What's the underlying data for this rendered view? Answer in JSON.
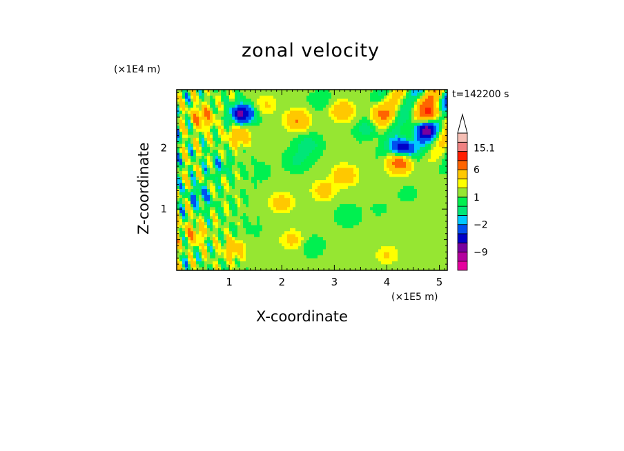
{
  "chart_data": {
    "type": "heatmap",
    "title": "zonal velocity",
    "xlabel": "X-coordinate",
    "ylabel": "Z-coordinate",
    "x_unit": "(×1E5 m)",
    "y_unit": "(×1E4 m)",
    "time_label": "t=142200 s",
    "xlim": [
      0,
      5.15
    ],
    "ylim": [
      0,
      2.95
    ],
    "x_ticks": [
      1,
      2,
      3,
      4,
      5
    ],
    "y_ticks": [
      1,
      2
    ],
    "colorbar": {
      "levels": [
        -15,
        -12,
        -9,
        -6,
        -4,
        -2,
        -1,
        0,
        1,
        2,
        3,
        6,
        9,
        12,
        15.1
      ],
      "colors": [
        "#e6009e",
        "#b4009e",
        "#78009e",
        "#0000c8",
        "#0050f0",
        "#00c8ff",
        "#00e678",
        "#00f050",
        "#96e632",
        "#ffff00",
        "#ffc800",
        "#ff6400",
        "#ff1e00",
        "#f08282",
        "#f5beb4"
      ],
      "tick_labels": [
        {
          "label": "15.1",
          "value": 15.1
        },
        {
          "label": "6",
          "value": 6
        },
        {
          "label": "1",
          "value": 1
        },
        {
          "label": "−2",
          "value": -2
        },
        {
          "label": "−9",
          "value": -9
        }
      ],
      "extend_max": true
    },
    "features": [
      {
        "x": 0.45,
        "z": 1.2,
        "value": -3
      },
      {
        "x": 0.3,
        "z": 0.6,
        "value": 4
      },
      {
        "x": 0.5,
        "z": 2.5,
        "value": 5
      },
      {
        "x": 1.25,
        "z": 2.55,
        "value": -8
      },
      {
        "x": 1.2,
        "z": 2.2,
        "value": 4
      },
      {
        "x": 1.7,
        "z": 2.7,
        "value": 2
      },
      {
        "x": 2.3,
        "z": 2.45,
        "value": 5
      },
      {
        "x": 2.5,
        "z": 2.05,
        "value": -2
      },
      {
        "x": 2.75,
        "z": 2.75,
        "value": -1
      },
      {
        "x": 3.15,
        "z": 2.6,
        "value": 4
      },
      {
        "x": 3.65,
        "z": 2.3,
        "value": -2
      },
      {
        "x": 3.9,
        "z": 2.55,
        "value": 5
      },
      {
        "x": 4.3,
        "z": 2.0,
        "value": -8
      },
      {
        "x": 4.25,
        "z": 1.75,
        "value": 7
      },
      {
        "x": 4.7,
        "z": 2.3,
        "value": -8
      },
      {
        "x": 4.85,
        "z": 2.55,
        "value": 7
      },
      {
        "x": 4.6,
        "z": 2.75,
        "value": 2
      },
      {
        "x": 3.85,
        "z": 1.0,
        "value": -0.3
      },
      {
        "x": 4.4,
        "z": 1.25,
        "value": -0.4
      },
      {
        "x": 3.25,
        "z": 0.9,
        "value": -1
      },
      {
        "x": 2.0,
        "z": 1.1,
        "value": 3
      },
      {
        "x": 2.8,
        "z": 1.3,
        "value": 3
      },
      {
        "x": 3.2,
        "z": 1.55,
        "value": 4
      },
      {
        "x": 2.2,
        "z": 0.5,
        "value": 2.5
      },
      {
        "x": 4.0,
        "z": 0.25,
        "value": 2
      },
      {
        "x": 1.1,
        "z": 0.35,
        "value": 3
      },
      {
        "x": 1.4,
        "z": 0.7,
        "value": -0.5
      },
      {
        "x": 2.3,
        "z": 1.8,
        "value": -1.5
      },
      {
        "x": 1.6,
        "z": 1.6,
        "value": -0.5
      },
      {
        "x": 0.8,
        "z": 1.7,
        "value": -2
      },
      {
        "x": 2.55,
        "z": 0.4,
        "value": -1
      }
    ]
  }
}
